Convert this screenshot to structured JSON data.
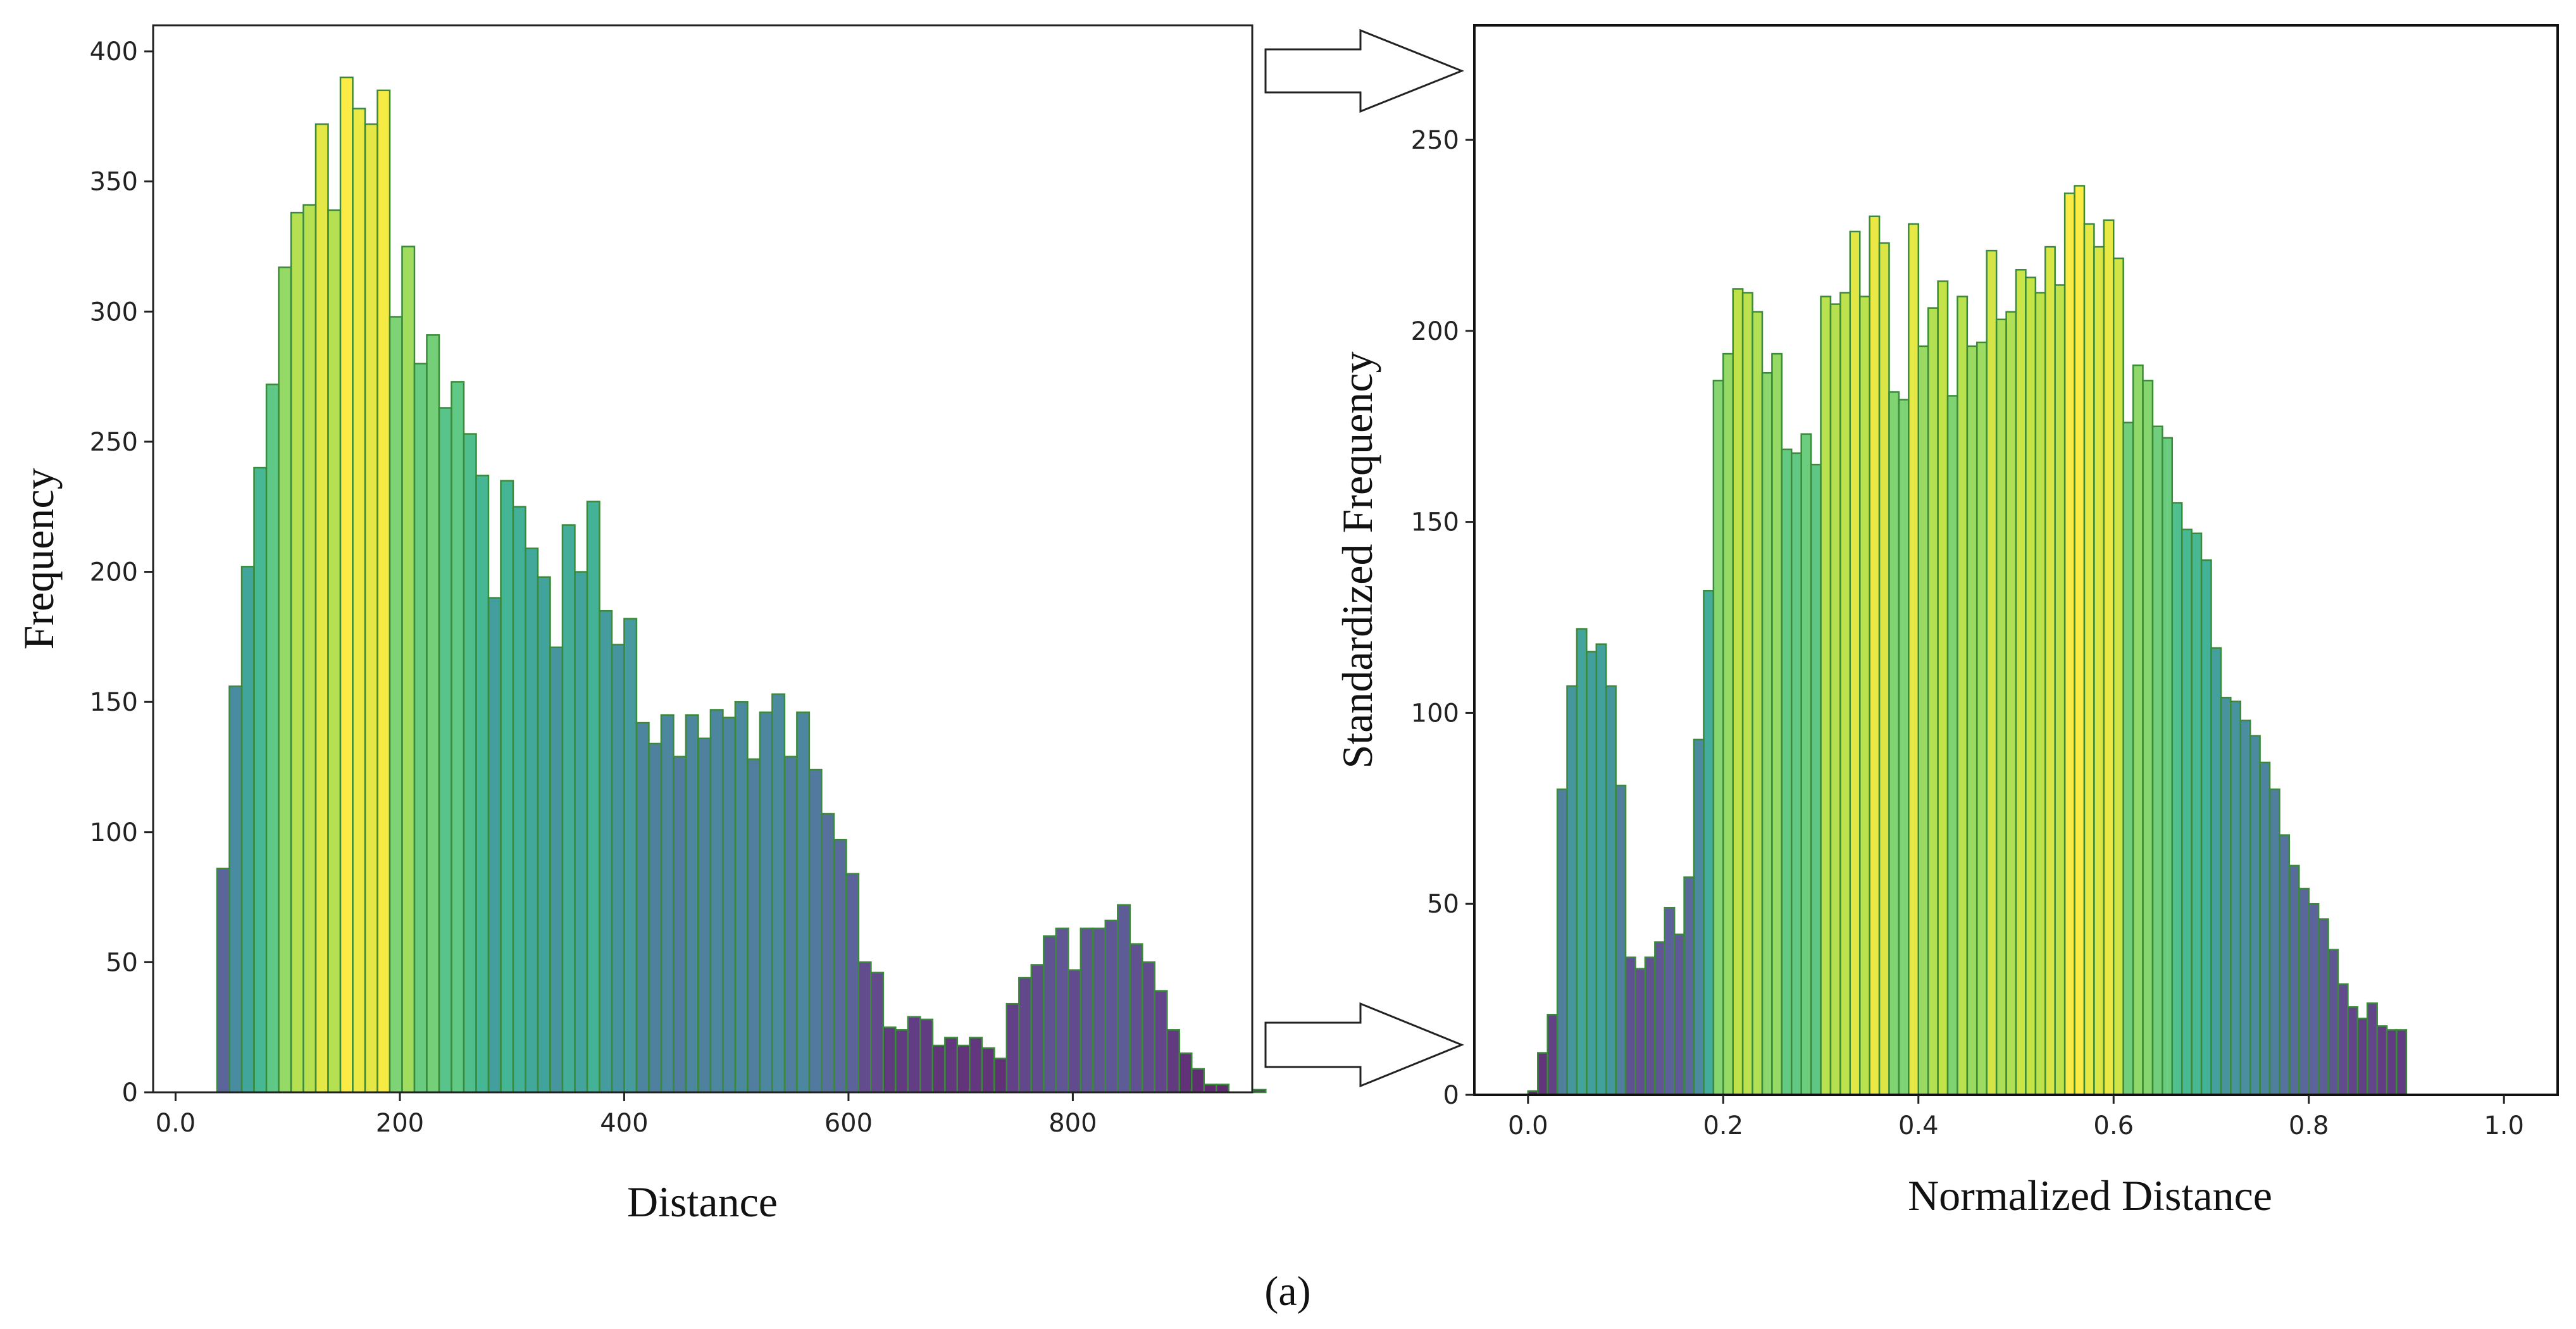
{
  "chart_data": [
    {
      "type": "bar",
      "title": "",
      "xlabel": "Distance",
      "ylabel": "Frequency",
      "xlim": [
        -20,
        960
      ],
      "ylim": [
        0,
        410
      ],
      "xticks": [
        0,
        200,
        400,
        600,
        800
      ],
      "xtick_labels": [
        "0.0",
        "200",
        "400",
        "600",
        "800"
      ],
      "yticks": [
        0,
        50,
        100,
        150,
        200,
        250,
        300,
        350,
        400
      ],
      "ytick_labels": [
        "0",
        "50",
        "100",
        "150",
        "200",
        "250",
        "300",
        "350",
        "400"
      ],
      "bin_start": 37,
      "bin_width": 11,
      "colormap": "viridis",
      "values": [
        86,
        156,
        202,
        240,
        272,
        317,
        338,
        341,
        372,
        339,
        390,
        378,
        372,
        385,
        298,
        325,
        280,
        291,
        263,
        273,
        253,
        237,
        190,
        235,
        225,
        209,
        198,
        171,
        218,
        200,
        227,
        185,
        172,
        182,
        142,
        134,
        145,
        129,
        145,
        136,
        147,
        144,
        150,
        128,
        146,
        153,
        129,
        146,
        124,
        107,
        97,
        84,
        50,
        46,
        25,
        24,
        29,
        28,
        18,
        21,
        18,
        21,
        17,
        13,
        34,
        44,
        49,
        60,
        63,
        47,
        63,
        63,
        66,
        72,
        57,
        50,
        39,
        24,
        15,
        9,
        3,
        3,
        0,
        0,
        1,
        0,
        0,
        0
      ]
    },
    {
      "type": "bar",
      "title": "",
      "xlabel": "Normalized Distance",
      "ylabel": "Standardized Frequency",
      "xlim": [
        -0.055,
        1.055
      ],
      "ylim": [
        0,
        280
      ],
      "xticks": [
        0.0,
        0.2,
        0.4,
        0.6,
        0.8,
        1.0
      ],
      "xtick_labels": [
        "0.0",
        "0.2",
        "0.4",
        "0.6",
        "0.8",
        "1.0"
      ],
      "yticks": [
        0,
        50,
        100,
        150,
        200,
        250
      ],
      "ytick_labels": [
        "0",
        "50",
        "100",
        "150",
        "200",
        "250"
      ],
      "bin_start": 0.0,
      "bin_width": 0.01,
      "colormap": "viridis",
      "values": [
        1,
        11,
        21,
        80,
        107,
        122,
        116,
        118,
        107,
        81,
        36,
        33,
        36,
        40,
        49,
        42,
        57,
        93,
        132,
        187,
        194,
        211,
        210,
        205,
        189,
        194,
        169,
        168,
        173,
        165,
        209,
        207,
        210,
        226,
        209,
        230,
        223,
        184,
        182,
        228,
        196,
        206,
        213,
        183,
        209,
        196,
        197,
        221,
        203,
        205,
        216,
        214,
        210,
        222,
        212,
        236,
        238,
        228,
        222,
        229,
        219,
        176,
        191,
        187,
        175,
        172,
        155,
        148,
        147,
        140,
        117,
        104,
        103,
        98,
        94,
        87,
        80,
        68,
        60,
        54,
        50,
        46,
        38,
        29,
        23,
        20,
        24,
        18,
        17,
        17
      ]
    }
  ],
  "caption": "(a)"
}
